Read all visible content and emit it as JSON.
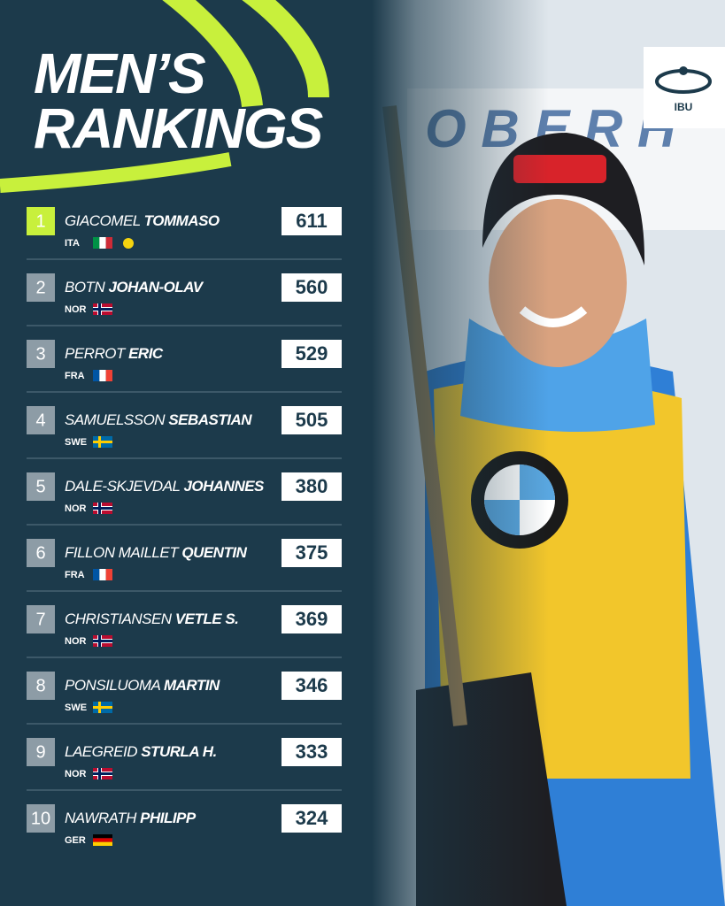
{
  "header": {
    "title_lines": [
      "MEN’S",
      "RANKINGS"
    ],
    "logo": "IBU"
  },
  "rankings": [
    {
      "rank": "1",
      "surname": "GIACOMEL",
      "first_name": "TOMMASO",
      "country": "ITA",
      "points": "611"
    },
    {
      "rank": "2",
      "surname": "BOTN",
      "first_name": "JOHAN-OLAV",
      "country": "NOR",
      "points": "560"
    },
    {
      "rank": "3",
      "surname": "PERROT",
      "first_name": "ERIC",
      "country": "FRA",
      "points": "529"
    },
    {
      "rank": "4",
      "surname": "SAMUELSSON",
      "first_name": "SEBASTIAN",
      "country": "SWE",
      "points": "505"
    },
    {
      "rank": "5",
      "surname": "DALE-SKJEVDAL",
      "first_name": "JOHANNES",
      "country": "NOR",
      "points": "380"
    },
    {
      "rank": "6",
      "surname": "FILLON MAILLET",
      "first_name": "QUENTIN",
      "country": "FRA",
      "points": "375"
    },
    {
      "rank": "7",
      "surname": "CHRISTIANSEN",
      "first_name": "VETLE S.",
      "country": "NOR",
      "points": "369"
    },
    {
      "rank": "8",
      "surname": "PONSILUOMA",
      "first_name": "MARTIN",
      "country": "SWE",
      "points": "346"
    },
    {
      "rank": "9",
      "surname": "LAEGREID",
      "first_name": "STURLA H.",
      "country": "NOR",
      "points": "333"
    },
    {
      "rank": "10",
      "surname": "NAWRATH",
      "first_name": "PHILIPP",
      "country": "GER",
      "points": "324"
    }
  ]
}
